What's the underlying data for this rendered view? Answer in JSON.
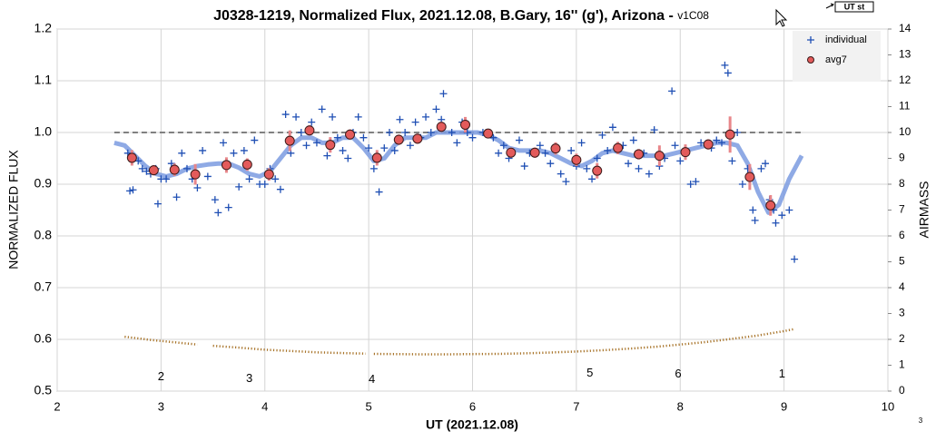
{
  "chart_data": {
    "type": "scatter",
    "title": "J0328-1219, Normalized Flux, 2021.12.08, B.Gary, 16'' (g'), Arizona - ",
    "subtitle": "v1C08",
    "xlabel": "UT (2021.12.08)",
    "ylabel": "NORMALIZED FLUX",
    "y2label": "AIRMASS",
    "corner_label": "UT st",
    "page_number": "3",
    "xlim": [
      2,
      10
    ],
    "xticks": [
      2,
      3,
      4,
      5,
      6,
      7,
      8,
      9,
      10
    ],
    "ylim": [
      0.5,
      1.2
    ],
    "yticks": [
      0.5,
      0.6,
      0.7,
      0.8,
      0.9,
      {
        "value": 1.0,
        "label": "1.0"
      },
      1.1,
      1.2
    ],
    "y2lim": [
      0,
      14
    ],
    "y2ticks": [
      0,
      1,
      2,
      3,
      4,
      5,
      6,
      7,
      8,
      9,
      10,
      11,
      12,
      13,
      14
    ],
    "grid": true,
    "legend": "upper right",
    "reference_line": {
      "value": 1.0,
      "color": "#808080"
    },
    "annotations": [
      {
        "text": "2",
        "x": 3.0,
        "y": 0.527
      },
      {
        "text": "3",
        "x": 3.85,
        "y": 0.524
      },
      {
        "text": "4",
        "x": 5.03,
        "y": 0.522
      },
      {
        "text": "5",
        "x": 7.13,
        "y": 0.534
      },
      {
        "text": "6",
        "x": 7.98,
        "y": 0.532
      },
      {
        "text": "1",
        "x": 8.98,
        "y": 0.532
      }
    ],
    "series": [
      {
        "color": "#7b9be0",
        "mode": "line",
        "x": [
          2.55,
          2.65,
          2.75,
          2.85,
          2.95,
          3.05,
          3.15,
          3.25,
          3.35,
          3.45,
          3.55,
          3.65,
          3.75,
          3.85,
          3.95,
          4.05,
          4.15,
          4.25,
          4.35,
          4.45,
          4.55,
          4.65,
          4.75,
          4.85,
          4.95,
          5.05,
          5.15,
          5.25,
          5.35,
          5.45,
          5.55,
          5.65,
          5.75,
          5.85,
          5.95,
          6.05,
          6.15,
          6.25,
          6.35,
          6.45,
          6.55,
          6.65,
          6.75,
          6.85,
          6.95,
          7.05,
          7.15,
          7.25,
          7.35,
          7.45,
          7.55,
          7.65,
          7.75,
          7.85,
          7.95,
          8.05,
          8.15,
          8.25,
          8.35,
          8.45,
          8.55,
          8.65,
          8.75,
          8.85,
          8.95,
          9.05,
          9.17
        ],
        "values": [
          0.98,
          0.975,
          0.955,
          0.935,
          0.92,
          0.915,
          0.92,
          0.93,
          0.935,
          0.938,
          0.94,
          0.94,
          0.932,
          0.92,
          0.915,
          0.925,
          0.95,
          0.975,
          0.99,
          0.99,
          0.98,
          0.98,
          0.99,
          0.99,
          0.97,
          0.945,
          0.95,
          0.975,
          0.99,
          0.99,
          0.99,
          1.0,
          1.0,
          1.0,
          1.0,
          1.0,
          0.995,
          0.985,
          0.97,
          0.965,
          0.965,
          0.965,
          0.96,
          0.95,
          0.94,
          0.935,
          0.945,
          0.96,
          0.965,
          0.96,
          0.955,
          0.955,
          0.955,
          0.955,
          0.96,
          0.965,
          0.97,
          0.975,
          0.98,
          0.98,
          0.975,
          0.94,
          0.885,
          0.845,
          0.86,
          0.91,
          0.955
        ]
      },
      {
        "name": "individual",
        "color": "#1f4fb4",
        "mode": "plus",
        "x": [
          2.68,
          2.7,
          2.73,
          2.78,
          2.82,
          2.86,
          2.9,
          2.95,
          2.97,
          3.0,
          3.05,
          3.1,
          3.15,
          3.2,
          3.25,
          3.3,
          3.35,
          3.4,
          3.45,
          3.52,
          3.55,
          3.6,
          3.65,
          3.7,
          3.75,
          3.8,
          3.85,
          3.9,
          3.95,
          4.0,
          4.05,
          4.1,
          4.15,
          4.2,
          4.25,
          4.3,
          4.35,
          4.4,
          4.45,
          4.5,
          4.55,
          4.6,
          4.65,
          4.7,
          4.75,
          4.8,
          4.85,
          4.9,
          4.95,
          5.0,
          5.05,
          5.1,
          5.15,
          5.2,
          5.25,
          5.3,
          5.35,
          5.4,
          5.45,
          5.5,
          5.55,
          5.6,
          5.65,
          5.7,
          5.72,
          5.8,
          5.85,
          5.9,
          5.95,
          6.0,
          6.1,
          6.2,
          6.25,
          6.3,
          6.35,
          6.45,
          6.5,
          6.55,
          6.65,
          6.7,
          6.75,
          6.85,
          6.9,
          6.95,
          7.0,
          7.05,
          7.1,
          7.15,
          7.2,
          7.25,
          7.3,
          7.35,
          7.45,
          7.5,
          7.55,
          7.6,
          7.65,
          7.7,
          7.75,
          7.8,
          7.85,
          7.92,
          7.95,
          8.0,
          8.1,
          8.15,
          8.2,
          8.3,
          8.35,
          8.4,
          8.43,
          8.46,
          8.5,
          8.55,
          8.6,
          8.65,
          8.7,
          8.72,
          8.78,
          8.82,
          8.86,
          8.9,
          8.92,
          8.98,
          9.05,
          9.1
        ],
        "values": [
          0.96,
          0.887,
          0.889,
          0.945,
          0.93,
          0.925,
          0.92,
          0.93,
          0.862,
          0.91,
          0.91,
          0.94,
          0.875,
          0.96,
          0.93,
          0.91,
          0.893,
          0.965,
          0.915,
          0.87,
          0.845,
          0.98,
          0.855,
          0.96,
          0.895,
          0.965,
          0.91,
          0.985,
          0.9,
          0.9,
          0.93,
          0.91,
          0.89,
          1.035,
          0.96,
          1.03,
          1.0,
          0.975,
          1.02,
          0.98,
          1.045,
          0.955,
          1.03,
          0.99,
          0.965,
          0.95,
          1.0,
          1.03,
          0.99,
          0.97,
          0.93,
          0.885,
          0.97,
          1.0,
          0.965,
          1.025,
          1.0,
          0.975,
          1.02,
          0.99,
          1.03,
          1.0,
          1.045,
          1.025,
          1.075,
          1.0,
          0.98,
          1.02,
          1.0,
          0.99,
          1.0,
          0.99,
          0.96,
          0.975,
          0.95,
          0.985,
          0.935,
          0.96,
          0.975,
          0.96,
          0.94,
          0.92,
          0.905,
          0.965,
          0.935,
          0.98,
          0.93,
          0.91,
          0.95,
          0.995,
          0.965,
          1.01,
          0.975,
          0.94,
          0.985,
          0.93,
          0.96,
          0.92,
          1.005,
          0.935,
          0.95,
          1.08,
          0.975,
          0.945,
          0.9,
          0.905,
          0.98,
          0.97,
          0.985,
          0.98,
          1.13,
          1.115,
          0.945,
          1.0,
          0.9,
          0.93,
          0.85,
          0.83,
          0.93,
          0.94,
          0.87,
          0.85,
          0.825,
          0.84,
          0.85,
          0.755
        ]
      },
      {
        "name": "avg7",
        "color": "#e35b5b",
        "error_color": "#e8868a",
        "mode": "circle",
        "x": [
          2.72,
          2.93,
          3.13,
          3.33,
          3.63,
          3.83,
          4.04,
          4.24,
          4.43,
          4.63,
          4.82,
          5.08,
          5.29,
          5.47,
          5.7,
          5.93,
          6.15,
          6.37,
          6.6,
          6.8,
          7.0,
          7.2,
          7.4,
          7.6,
          7.8,
          8.05,
          8.27,
          8.48,
          8.67,
          8.87
        ],
        "values": [
          0.951,
          0.927,
          0.928,
          0.919,
          0.937,
          0.938,
          0.919,
          0.984,
          1.004,
          0.976,
          0.996,
          0.951,
          0.986,
          0.988,
          1.011,
          1.015,
          0.998,
          0.961,
          0.961,
          0.969,
          0.947,
          0.926,
          0.97,
          0.958,
          0.955,
          0.962,
          0.977,
          0.996,
          0.914,
          0.859
        ],
        "errors": [
          0.015,
          0.01,
          0.012,
          0.02,
          0.015,
          0.012,
          0.012,
          0.02,
          0.01,
          0.015,
          0.01,
          0.015,
          0.01,
          0.01,
          0.01,
          0.015,
          0.008,
          0.01,
          0.01,
          0.012,
          0.012,
          0.015,
          0.012,
          0.01,
          0.02,
          0.015,
          0.01,
          0.035,
          0.025,
          0.02
        ]
      },
      {
        "color": "#a8742a",
        "mode": "dotted",
        "axis": "y2",
        "x": [
          2.65,
          2.9,
          3.1,
          3.35,
          3.42,
          3.5,
          3.75,
          4.0,
          4.25,
          4.5,
          4.75,
          4.97,
          5.0,
          5.05,
          5.25,
          5.5,
          5.75,
          6.0,
          6.25,
          6.5,
          6.75,
          7.0,
          7.25,
          7.5,
          7.75,
          8.0,
          8.25,
          8.5,
          8.75,
          9.0,
          9.1
        ],
        "values": [
          2.1,
          1.98,
          1.9,
          1.8,
          null,
          1.75,
          1.68,
          1.6,
          1.55,
          1.5,
          1.47,
          1.45,
          null,
          1.44,
          1.43,
          1.42,
          1.42,
          1.43,
          1.44,
          1.46,
          1.49,
          1.53,
          1.58,
          1.64,
          1.71,
          1.8,
          1.9,
          2.02,
          2.15,
          2.32,
          2.4
        ]
      }
    ]
  }
}
